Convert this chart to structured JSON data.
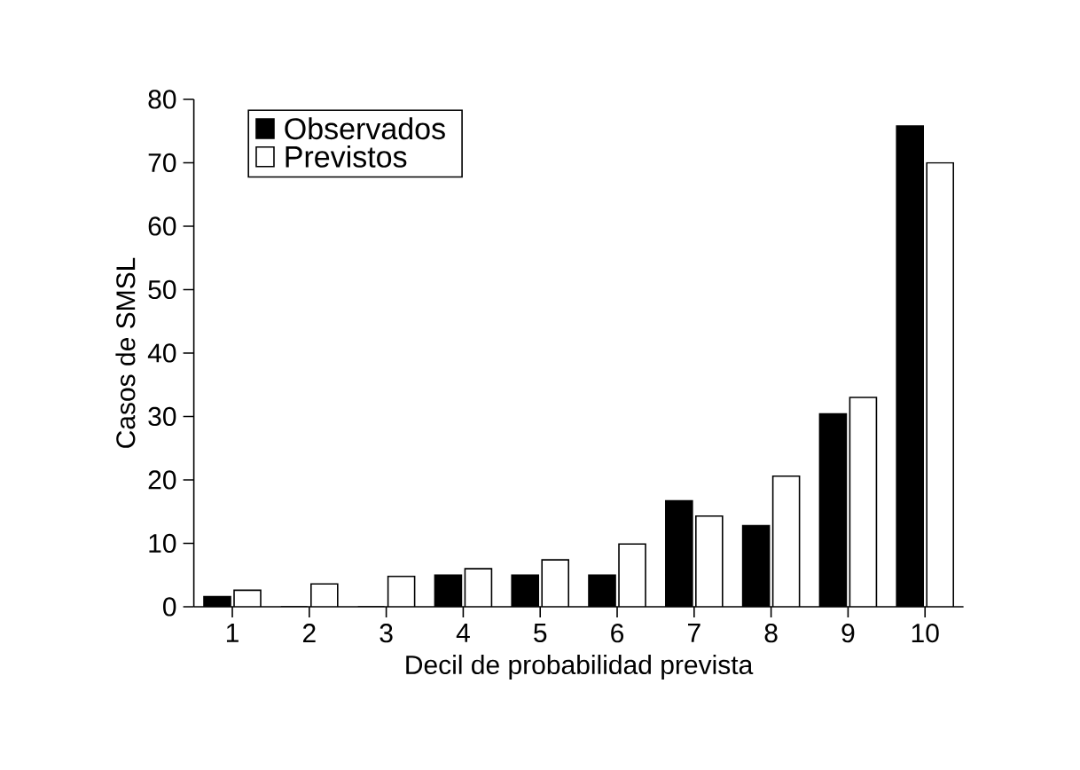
{
  "chart_data": {
    "type": "bar",
    "xlabel": "Decil de probabilidad prevista",
    "ylabel": "Casos de SMSL",
    "categories": [
      "1",
      "2",
      "3",
      "4",
      "5",
      "6",
      "7",
      "8",
      "9",
      "10"
    ],
    "series": [
      {
        "name": "Observados",
        "color": "#000000",
        "values": [
          1.6,
          0,
          0,
          5,
          5,
          5,
          16.7,
          12.8,
          30.4,
          75.8
        ]
      },
      {
        "name": "Previstos",
        "color": "#ffffff",
        "values": [
          2.6,
          3.6,
          4.8,
          6,
          7.4,
          9.9,
          14.3,
          20.6,
          33,
          70
        ]
      }
    ],
    "ylim": [
      0,
      80
    ],
    "yticks": [
      0,
      10,
      20,
      30,
      40,
      50,
      60,
      70,
      80
    ],
    "grid": false,
    "legend": "top left"
  }
}
